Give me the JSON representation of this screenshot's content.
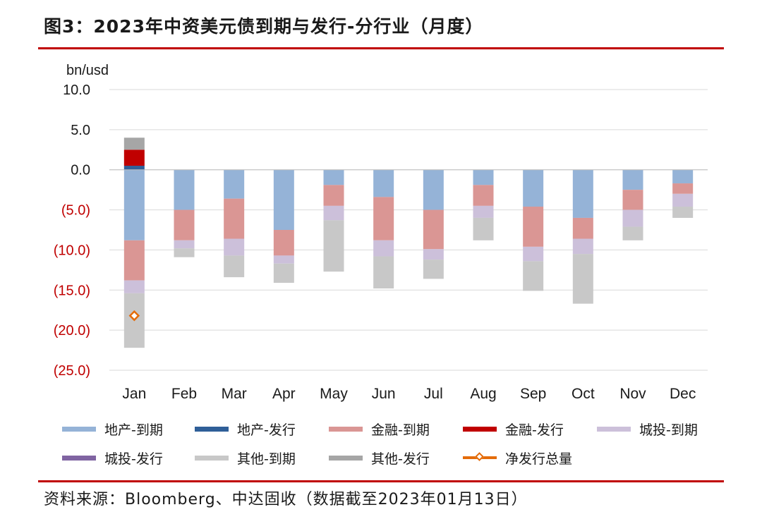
{
  "header": {
    "title": "图3：2023年中资美元债到期与发行-分行业（月度）"
  },
  "footer": {
    "source": "资料来源：Bloomberg、中达固收（数据截至2023年01月13日）"
  },
  "chart_data": {
    "type": "bar",
    "stacked": true,
    "unit_label": "bn/usd",
    "ylim": [
      -25,
      10
    ],
    "y_ticks": [
      {
        "value": 10,
        "label": "10.0",
        "color": "#1a1a1a"
      },
      {
        "value": 5,
        "label": "5.0",
        "color": "#1a1a1a"
      },
      {
        "value": 0,
        "label": "0.0",
        "color": "#1a1a1a"
      },
      {
        "value": -5,
        "label": "(5.0)",
        "color": "#c00000"
      },
      {
        "value": -10,
        "label": "(10.0)",
        "color": "#c00000"
      },
      {
        "value": -15,
        "label": "(15.0)",
        "color": "#c00000"
      },
      {
        "value": -20,
        "label": "(20.0)",
        "color": "#c00000"
      },
      {
        "value": -25,
        "label": "(25.0)",
        "color": "#c00000"
      }
    ],
    "grid": true,
    "legend_position": "bottom",
    "categories": [
      "Jan",
      "Feb",
      "Mar",
      "Apr",
      "May",
      "Jun",
      "Jul",
      "Aug",
      "Sep",
      "Oct",
      "Nov",
      "Dec"
    ],
    "series": [
      {
        "name": "地产-到期",
        "color": "#95b3d7",
        "values": [
          -8.8,
          -5.0,
          -3.6,
          -7.5,
          -1.9,
          -3.4,
          -5.0,
          -1.9,
          -4.6,
          -6.0,
          -2.5,
          -1.7
        ]
      },
      {
        "name": "地产-发行",
        "color": "#2f5f98",
        "values": [
          0.5,
          0,
          0,
          0,
          0,
          0,
          0,
          0,
          0,
          0,
          0,
          0
        ]
      },
      {
        "name": "金融-到期",
        "color": "#da9694",
        "values": [
          -5.0,
          -3.8,
          -5.0,
          -3.2,
          -2.6,
          -5.4,
          -4.9,
          -2.6,
          -5.0,
          -2.6,
          -2.5,
          -1.3
        ]
      },
      {
        "name": "金融-发行",
        "color": "#c00000",
        "values": [
          2.0,
          0,
          0,
          0,
          0,
          0,
          0,
          0,
          0,
          0,
          0,
          0
        ]
      },
      {
        "name": "城投-到期",
        "color": "#ccc0da",
        "values": [
          -1.6,
          -1.0,
          -2.1,
          -1.0,
          -1.8,
          -2.0,
          -1.3,
          -1.5,
          -1.8,
          -1.9,
          -2.1,
          -1.6
        ]
      },
      {
        "name": "城投-发行",
        "color": "#8064a2",
        "values": [
          0,
          0,
          0,
          0,
          0,
          0,
          0,
          0,
          0,
          0,
          0,
          0
        ]
      },
      {
        "name": "其他-到期",
        "color": "#c8c8c8",
        "values": [
          -6.8,
          -1.1,
          -2.7,
          -2.4,
          -6.4,
          -4.0,
          -2.4,
          -2.8,
          -3.7,
          -6.2,
          -1.7,
          -1.4
        ]
      },
      {
        "name": "其他-发行",
        "color": "#a6a6a6",
        "values": [
          1.5,
          0,
          0,
          0,
          0,
          0,
          0,
          0,
          0,
          0,
          0,
          0
        ]
      }
    ],
    "net_issuance": {
      "name": "净发行总量",
      "color": "#e46c0a",
      "values": [
        -18.2,
        null,
        null,
        null,
        null,
        null,
        null,
        null,
        null,
        null,
        null,
        null
      ]
    }
  }
}
